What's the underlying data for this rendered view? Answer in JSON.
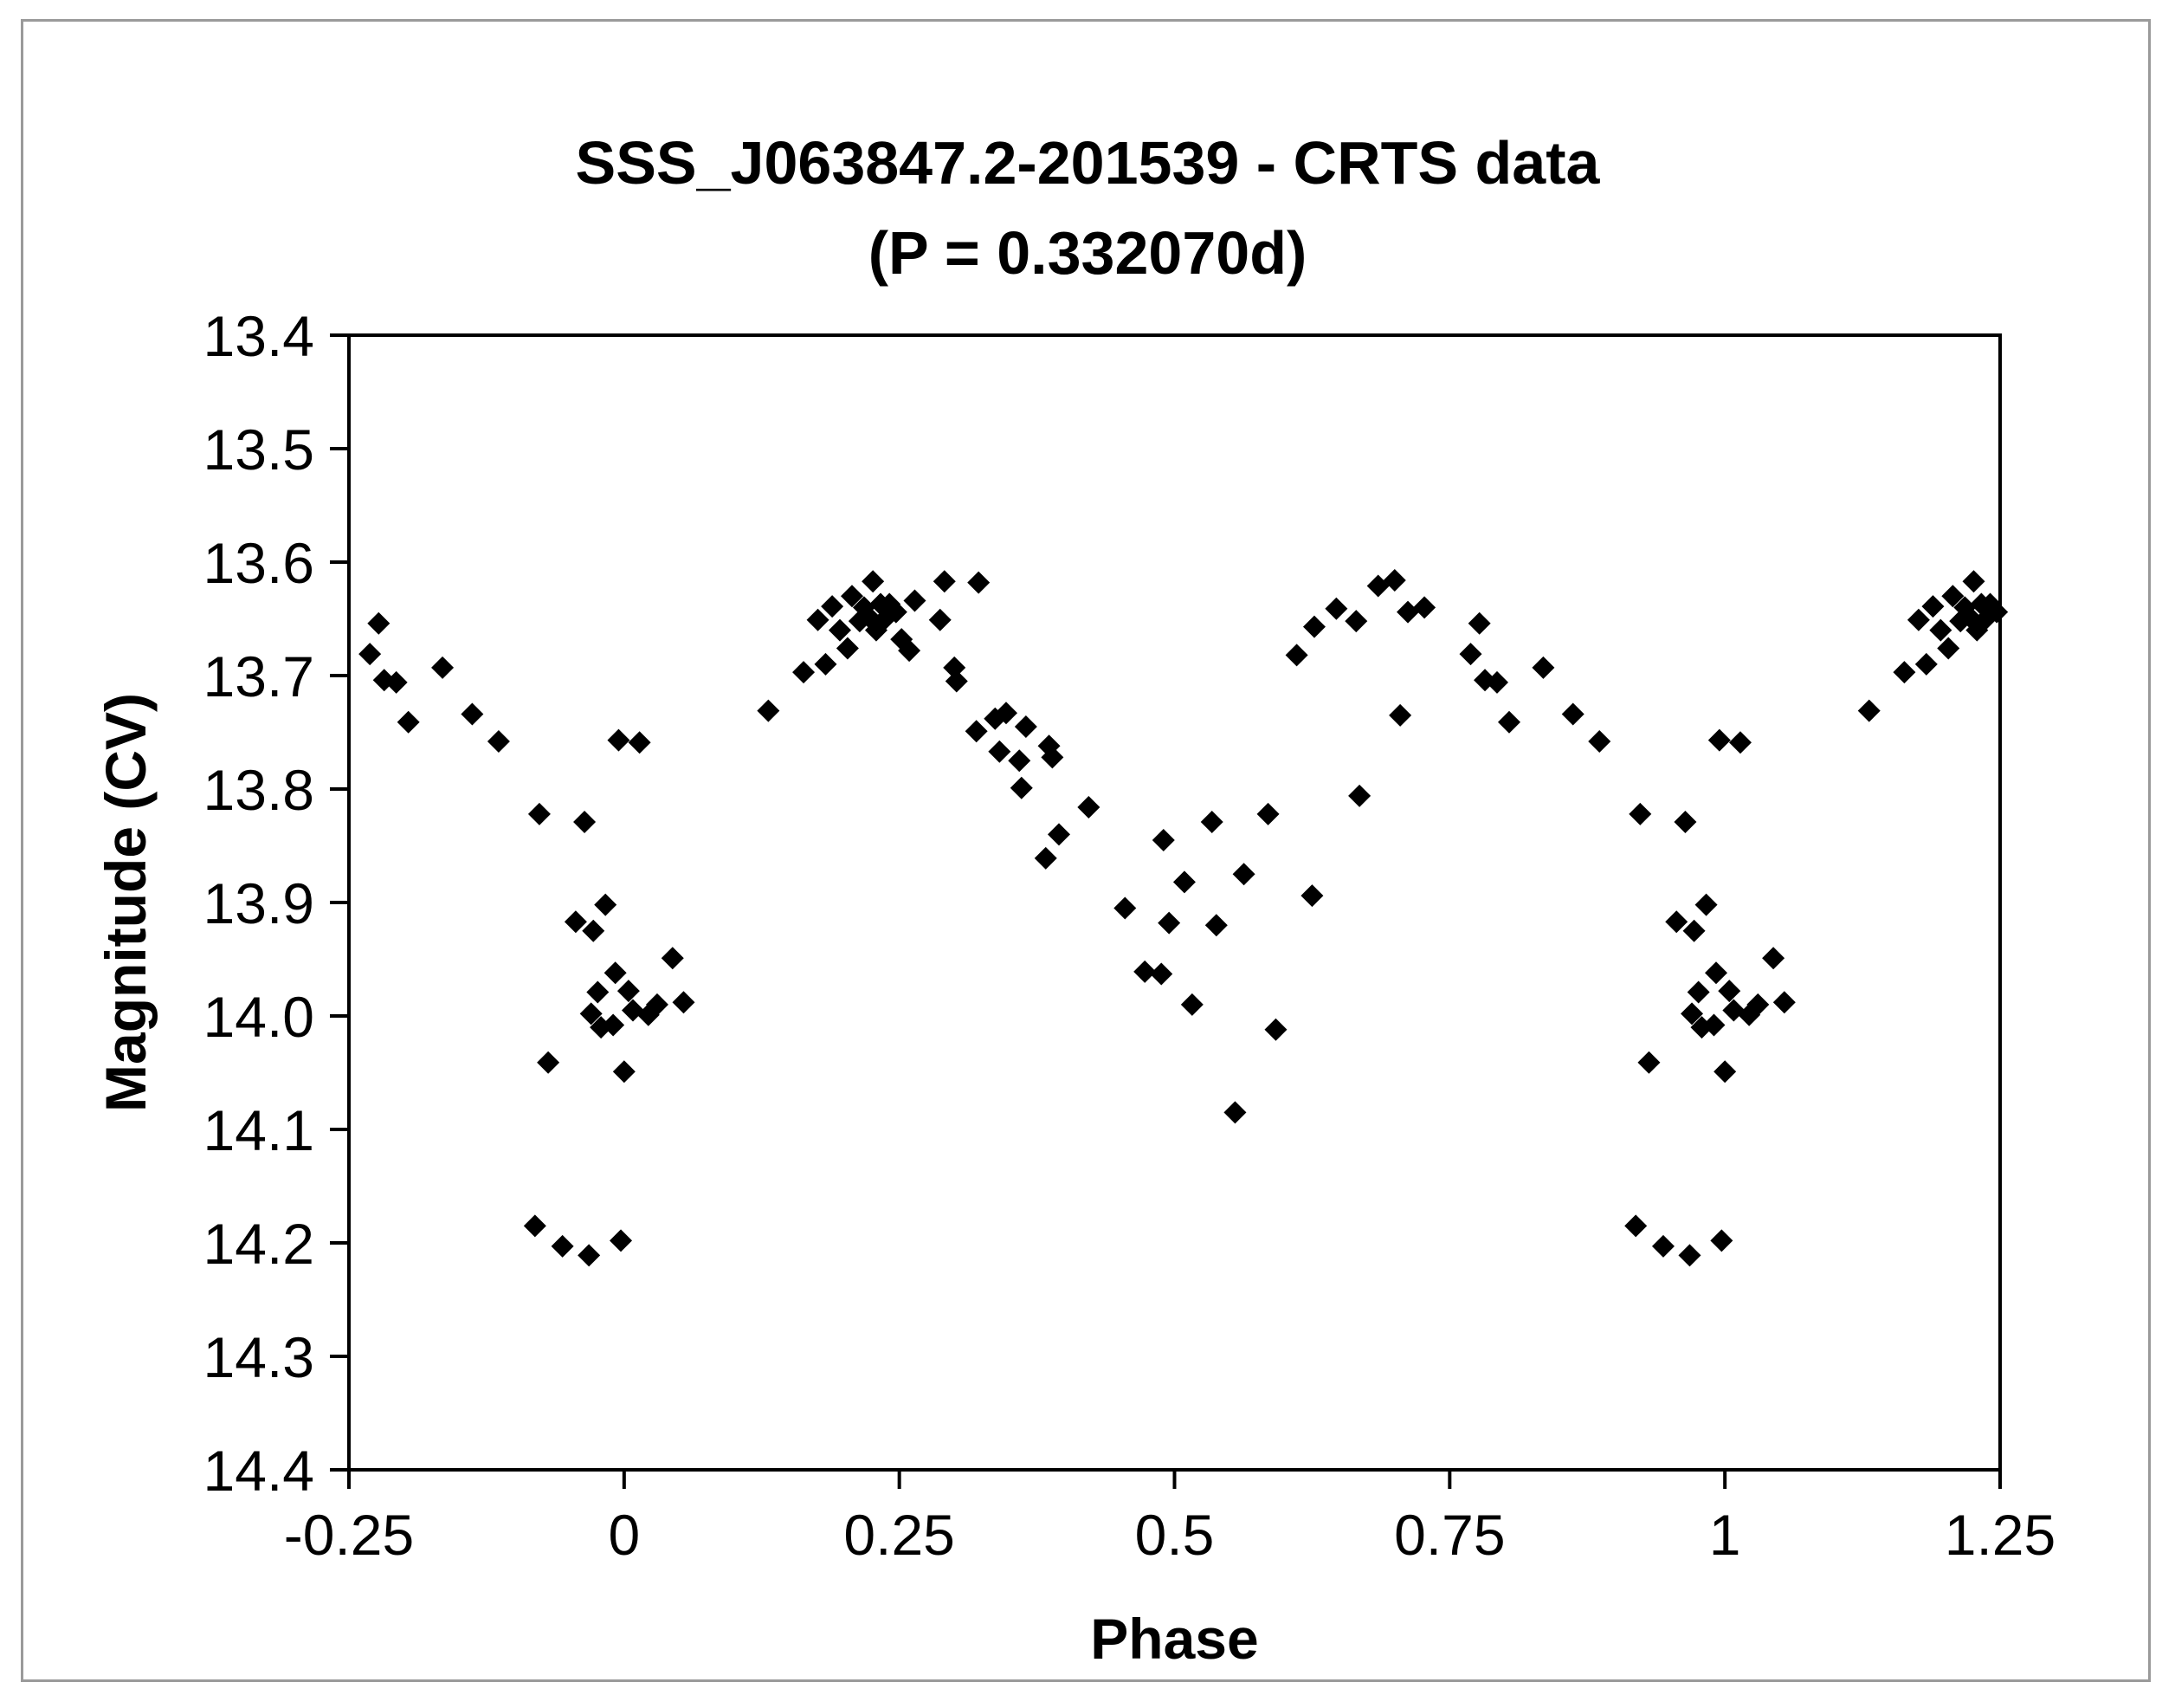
{
  "chart_data": {
    "type": "scatter",
    "title": "SSS_J063847.2-201539 - CRTS data",
    "subtitle": "(P = 0.332070d)",
    "xlabel": "Phase",
    "ylabel": "Magnitude (CV)",
    "xlim": [
      -0.25,
      1.25
    ],
    "ylim": [
      13.4,
      14.4
    ],
    "y_inverted": true,
    "x_ticks": [
      "-0.25",
      "0",
      "0.25",
      "0.5",
      "0.75",
      "1",
      "1.25"
    ],
    "y_ticks": [
      "13.4",
      "13.5",
      "13.6",
      "13.7",
      "13.8",
      "13.9",
      "14.0",
      "14.1",
      "14.2",
      "14.3",
      "14.4"
    ],
    "grid": false,
    "legend": "none",
    "marker": "diamond",
    "marker_color": "#000000",
    "points": [
      [
        -0.231,
        13.681
      ],
      [
        -0.223,
        13.654
      ],
      [
        -0.218,
        13.704
      ],
      [
        -0.207,
        13.706
      ],
      [
        -0.196,
        13.741
      ],
      [
        -0.165,
        13.693
      ],
      [
        -0.138,
        13.734
      ],
      [
        -0.114,
        13.758
      ],
      [
        -0.077,
        13.822
      ],
      [
        -0.069,
        14.041
      ],
      [
        -0.056,
        14.203
      ],
      [
        -0.044,
        13.917
      ],
      [
        -0.036,
        13.829
      ],
      [
        -0.032,
        14.211
      ],
      [
        -0.03,
        13.998
      ],
      [
        -0.028,
        13.925
      ],
      [
        -0.024,
        13.979
      ],
      [
        -0.021,
        14.01
      ],
      [
        -0.017,
        13.902
      ],
      [
        -0.01,
        14.008
      ],
      [
        -0.008,
        13.962
      ],
      [
        -0.005,
        13.757
      ],
      [
        -0.003,
        14.198
      ],
      [
        0.0,
        14.049
      ],
      [
        0.004,
        13.978
      ],
      [
        0.008,
        13.995
      ],
      [
        0.014,
        13.759
      ],
      [
        0.022,
        13.999
      ],
      [
        0.03,
        13.99
      ],
      [
        0.044,
        13.949
      ],
      [
        0.054,
        13.988
      ],
      [
        -0.081,
        14.185
      ],
      [
        0.131,
        13.731
      ],
      [
        0.163,
        13.697
      ],
      [
        0.176,
        13.651
      ],
      [
        0.183,
        13.69
      ],
      [
        0.189,
        13.639
      ],
      [
        0.196,
        13.66
      ],
      [
        0.203,
        13.676
      ],
      [
        0.207,
        13.63
      ],
      [
        0.214,
        13.652
      ],
      [
        0.218,
        13.64
      ],
      [
        0.222,
        13.648
      ],
      [
        0.226,
        13.617
      ],
      [
        0.229,
        13.66
      ],
      [
        0.233,
        13.637
      ],
      [
        0.237,
        13.65
      ],
      [
        0.241,
        13.637
      ],
      [
        0.247,
        13.644
      ],
      [
        0.252,
        13.668
      ],
      [
        0.259,
        13.678
      ],
      [
        0.264,
        13.634
      ],
      [
        0.287,
        13.651
      ],
      [
        0.291,
        13.617
      ],
      [
        0.3,
        13.693
      ],
      [
        0.302,
        13.705
      ],
      [
        0.322,
        13.618
      ],
      [
        0.32,
        13.749
      ],
      [
        0.337,
        13.738
      ],
      [
        0.341,
        13.767
      ],
      [
        0.347,
        13.733
      ],
      [
        0.359,
        13.775
      ],
      [
        0.361,
        13.799
      ],
      [
        0.365,
        13.745
      ],
      [
        0.383,
        13.861
      ],
      [
        0.386,
        13.762
      ],
      [
        0.389,
        13.772
      ],
      [
        0.395,
        13.84
      ],
      [
        0.422,
        13.816
      ],
      [
        0.455,
        13.905
      ],
      [
        0.473,
        13.961
      ],
      [
        0.488,
        13.963
      ],
      [
        0.49,
        13.845
      ],
      [
        0.495,
        13.918
      ],
      [
        0.509,
        13.882
      ],
      [
        0.516,
        13.99
      ],
      [
        0.534,
        13.829
      ],
      [
        0.538,
        13.92
      ],
      [
        0.555,
        14.085
      ],
      [
        0.563,
        13.875
      ],
      [
        0.585,
        13.822
      ],
      [
        0.592,
        14.012
      ],
      [
        0.625,
        13.894
      ],
      [
        0.611,
        13.682
      ],
      [
        0.627,
        13.657
      ],
      [
        0.647,
        13.641
      ],
      [
        0.665,
        13.652
      ],
      [
        0.668,
        13.806
      ],
      [
        0.685,
        13.621
      ],
      [
        0.7,
        13.616
      ],
      [
        0.705,
        13.735
      ],
      [
        0.712,
        13.644
      ],
      [
        0.727,
        13.64
      ],
      [
        0.769,
        13.681
      ],
      [
        0.777,
        13.654
      ],
      [
        0.782,
        13.704
      ],
      [
        0.793,
        13.706
      ],
      [
        0.804,
        13.741
      ],
      [
        0.835,
        13.693
      ],
      [
        0.862,
        13.734
      ],
      [
        0.886,
        13.758
      ],
      [
        0.923,
        13.822
      ],
      [
        0.931,
        14.041
      ],
      [
        0.944,
        14.203
      ],
      [
        0.956,
        13.917
      ],
      [
        0.964,
        13.829
      ],
      [
        0.968,
        14.211
      ],
      [
        0.97,
        13.998
      ],
      [
        0.972,
        13.925
      ],
      [
        0.976,
        13.979
      ],
      [
        0.979,
        14.01
      ],
      [
        0.983,
        13.902
      ],
      [
        0.99,
        14.008
      ],
      [
        0.992,
        13.962
      ],
      [
        0.995,
        13.757
      ],
      [
        0.997,
        14.198
      ],
      [
        1.0,
        14.049
      ],
      [
        1.004,
        13.978
      ],
      [
        1.008,
        13.995
      ],
      [
        1.014,
        13.759
      ],
      [
        1.022,
        13.999
      ],
      [
        1.03,
        13.99
      ],
      [
        1.044,
        13.949
      ],
      [
        1.054,
        13.988
      ],
      [
        0.919,
        14.185
      ],
      [
        1.131,
        13.731
      ],
      [
        1.163,
        13.697
      ],
      [
        1.176,
        13.651
      ],
      [
        1.183,
        13.69
      ],
      [
        1.189,
        13.639
      ],
      [
        1.196,
        13.66
      ],
      [
        1.203,
        13.676
      ],
      [
        1.207,
        13.63
      ],
      [
        1.214,
        13.652
      ],
      [
        1.218,
        13.64
      ],
      [
        1.222,
        13.648
      ],
      [
        1.226,
        13.617
      ],
      [
        1.229,
        13.66
      ],
      [
        1.233,
        13.637
      ],
      [
        1.237,
        13.65
      ],
      [
        1.241,
        13.637
      ],
      [
        1.247,
        13.644
      ]
    ]
  }
}
